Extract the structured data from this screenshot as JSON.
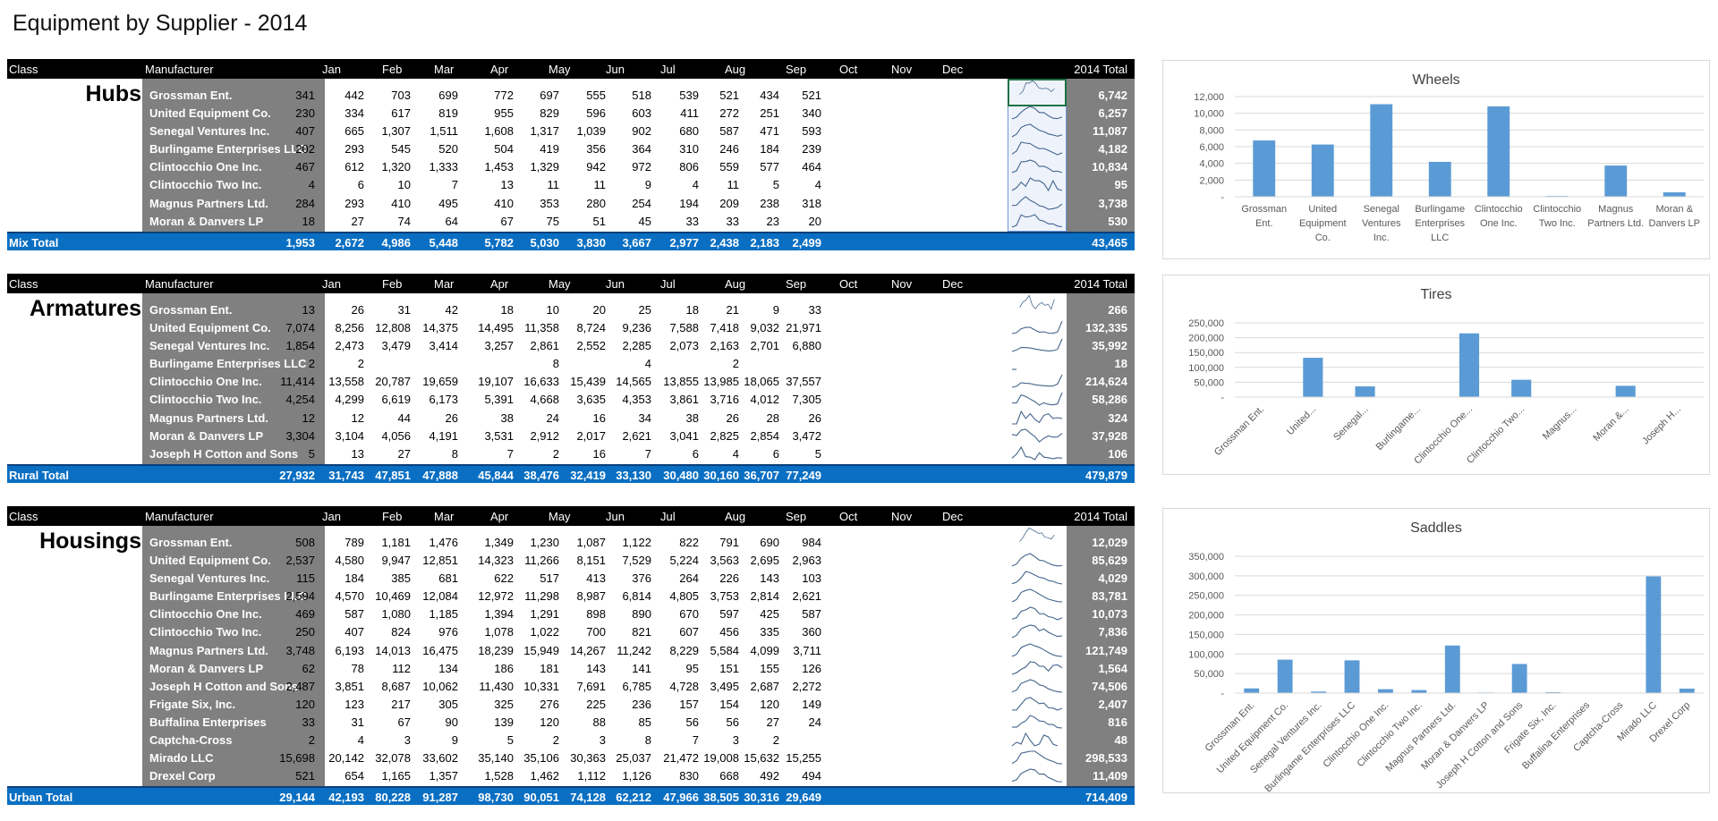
{
  "page": {
    "title": "Equipment by Supplier - 2014"
  },
  "table_headers": {
    "class": "Class",
    "manufacturer": "Manufacturer",
    "months": [
      "Jan",
      "Feb",
      "Mar",
      "Apr",
      "May",
      "Jun",
      "Jul",
      "Aug",
      "Sep",
      "Oct",
      "Nov",
      "Dec"
    ],
    "total": "2014 Total"
  },
  "sections": [
    {
      "class_name": "Hubs",
      "total_label": "Mix Total",
      "rows": [
        {
          "manufacturer": "Grossman Ent.",
          "values": [
            "341",
            "442",
            "703",
            "699",
            "772",
            "697",
            "555",
            "518",
            "539",
            "521",
            "434",
            "521"
          ],
          "total": "6,742"
        },
        {
          "manufacturer": "United Equipment Co.",
          "values": [
            "230",
            "334",
            "617",
            "819",
            "955",
            "829",
            "596",
            "603",
            "411",
            "272",
            "251",
            "340"
          ],
          "total": "6,257"
        },
        {
          "manufacturer": "Senegal Ventures Inc.",
          "values": [
            "407",
            "665",
            "1,307",
            "1,511",
            "1,608",
            "1,317",
            "1,039",
            "902",
            "680",
            "587",
            "471",
            "593"
          ],
          "total": "11,087"
        },
        {
          "manufacturer": "Burlingame Enterprises LLC",
          "values": [
            "202",
            "293",
            "545",
            "520",
            "504",
            "419",
            "356",
            "364",
            "310",
            "246",
            "184",
            "239"
          ],
          "total": "4,182"
        },
        {
          "manufacturer": "Clintocchio One Inc.",
          "values": [
            "467",
            "612",
            "1,320",
            "1,333",
            "1,453",
            "1,329",
            "942",
            "972",
            "806",
            "559",
            "577",
            "464"
          ],
          "total": "10,834"
        },
        {
          "manufacturer": "Clintocchio Two Inc.",
          "values": [
            "4",
            "6",
            "10",
            "7",
            "13",
            "11",
            "11",
            "9",
            "4",
            "11",
            "5",
            "4"
          ],
          "total": "95"
        },
        {
          "manufacturer": "Magnus Partners Ltd.",
          "values": [
            "284",
            "293",
            "410",
            "495",
            "410",
            "353",
            "280",
            "254",
            "194",
            "209",
            "238",
            "318"
          ],
          "total": "3,738"
        },
        {
          "manufacturer": "Moran & Danvers LP",
          "values": [
            "18",
            "27",
            "74",
            "64",
            "67",
            "75",
            "51",
            "45",
            "33",
            "33",
            "23",
            "20"
          ],
          "total": "530"
        }
      ],
      "totals": [
        "1,953",
        "2,672",
        "4,986",
        "5,448",
        "5,782",
        "5,030",
        "3,830",
        "3,667",
        "2,977",
        "2,438",
        "2,183",
        "2,499"
      ],
      "grand_total": "43,465"
    },
    {
      "class_name": "Armatures",
      "total_label": "Rural Total",
      "rows": [
        {
          "manufacturer": "Grossman Ent.",
          "values": [
            "13",
            "26",
            "31",
            "42",
            "18",
            "10",
            "20",
            "25",
            "18",
            "21",
            "9",
            "33"
          ],
          "total": "266"
        },
        {
          "manufacturer": "United Equipment Co.",
          "values": [
            "7,074",
            "8,256",
            "12,808",
            "14,375",
            "14,495",
            "11,358",
            "8,724",
            "9,236",
            "7,588",
            "7,418",
            "9,032",
            "21,971"
          ],
          "total": "132,335"
        },
        {
          "manufacturer": "Senegal Ventures Inc.",
          "values": [
            "1,854",
            "2,473",
            "3,479",
            "3,414",
            "3,257",
            "2,861",
            "2,552",
            "2,285",
            "2,073",
            "2,163",
            "2,701",
            "6,880"
          ],
          "total": "35,992"
        },
        {
          "manufacturer": "Burlingame Enterprises LLC",
          "values": [
            "2",
            "2",
            "",
            "",
            "",
            "8",
            "",
            "4",
            "",
            "2",
            "",
            ""
          ],
          "total": "18"
        },
        {
          "manufacturer": "Clintocchio One Inc.",
          "values": [
            "11,414",
            "13,558",
            "20,787",
            "19,659",
            "19,107",
            "16,633",
            "15,439",
            "14,565",
            "13,855",
            "13,985",
            "18,065",
            "37,557"
          ],
          "total": "214,624"
        },
        {
          "manufacturer": "Clintocchio Two Inc.",
          "values": [
            "4,254",
            "4,299",
            "6,619",
            "6,173",
            "5,391",
            "4,668",
            "3,635",
            "4,353",
            "3,861",
            "3,716",
            "4,012",
            "7,305"
          ],
          "total": "58,286"
        },
        {
          "manufacturer": "Magnus Partners Ltd.",
          "values": [
            "12",
            "12",
            "44",
            "26",
            "38",
            "24",
            "16",
            "34",
            "38",
            "26",
            "28",
            "26"
          ],
          "total": "324"
        },
        {
          "manufacturer": "Moran & Danvers LP",
          "values": [
            "3,304",
            "3,104",
            "4,056",
            "4,191",
            "3,531",
            "2,912",
            "2,017",
            "2,621",
            "3,041",
            "2,825",
            "2,854",
            "3,472"
          ],
          "total": "37,928"
        },
        {
          "manufacturer": "Joseph H Cotton and Sons",
          "values": [
            "5",
            "13",
            "27",
            "8",
            "7",
            "2",
            "16",
            "7",
            "6",
            "4",
            "6",
            "5"
          ],
          "total": "106"
        }
      ],
      "totals": [
        "27,932",
        "31,743",
        "47,851",
        "47,888",
        "45,844",
        "38,476",
        "32,419",
        "33,130",
        "30,480",
        "30,160",
        "36,707",
        "77,249"
      ],
      "grand_total": "479,879"
    },
    {
      "class_name": "Housings",
      "total_label": "Urban Total",
      "rows": [
        {
          "manufacturer": "Grossman Ent.",
          "values": [
            "508",
            "789",
            "1,181",
            "1,476",
            "1,349",
            "1,230",
            "1,087",
            "1,122",
            "822",
            "791",
            "690",
            "984"
          ],
          "total": "12,029"
        },
        {
          "manufacturer": "United Equipment Co.",
          "values": [
            "2,537",
            "4,580",
            "9,947",
            "12,851",
            "14,323",
            "11,266",
            "8,151",
            "7,529",
            "5,224",
            "3,563",
            "2,695",
            "2,963"
          ],
          "total": "85,629"
        },
        {
          "manufacturer": "Senegal Ventures Inc.",
          "values": [
            "115",
            "184",
            "385",
            "681",
            "622",
            "517",
            "413",
            "376",
            "264",
            "226",
            "143",
            "103"
          ],
          "total": "4,029"
        },
        {
          "manufacturer": "Burlingame Enterprises LLC",
          "values": [
            "2,594",
            "4,570",
            "10,469",
            "12,084",
            "12,972",
            "11,298",
            "8,987",
            "6,814",
            "4,805",
            "3,753",
            "2,814",
            "2,621"
          ],
          "total": "83,781"
        },
        {
          "manufacturer": "Clintocchio One Inc.",
          "values": [
            "469",
            "587",
            "1,080",
            "1,185",
            "1,394",
            "1,291",
            "898",
            "890",
            "670",
            "597",
            "425",
            "587"
          ],
          "total": "10,073"
        },
        {
          "manufacturer": "Clintocchio Two Inc.",
          "values": [
            "250",
            "407",
            "824",
            "976",
            "1,078",
            "1,022",
            "700",
            "821",
            "607",
            "456",
            "335",
            "360"
          ],
          "total": "7,836"
        },
        {
          "manufacturer": "Magnus Partners Ltd.",
          "values": [
            "3,748",
            "6,193",
            "14,013",
            "16,475",
            "18,239",
            "15,949",
            "14,267",
            "11,242",
            "8,229",
            "5,584",
            "4,099",
            "3,711"
          ],
          "total": "121,749"
        },
        {
          "manufacturer": "Moran & Danvers LP",
          "values": [
            "62",
            "78",
            "112",
            "134",
            "186",
            "181",
            "143",
            "141",
            "95",
            "151",
            "155",
            "126"
          ],
          "total": "1,564"
        },
        {
          "manufacturer": "Joseph H Cotton and Sons",
          "values": [
            "2,487",
            "3,851",
            "8,687",
            "10,062",
            "11,430",
            "10,331",
            "7,691",
            "6,785",
            "4,728",
            "3,495",
            "2,687",
            "2,272"
          ],
          "total": "74,506"
        },
        {
          "manufacturer": "Frigate Six, Inc.",
          "values": [
            "120",
            "123",
            "217",
            "305",
            "325",
            "276",
            "225",
            "236",
            "157",
            "154",
            "120",
            "149"
          ],
          "total": "2,407"
        },
        {
          "manufacturer": "Buffalina Enterprises",
          "values": [
            "33",
            "31",
            "67",
            "90",
            "139",
            "120",
            "88",
            "85",
            "56",
            "56",
            "27",
            "24"
          ],
          "total": "816"
        },
        {
          "manufacturer": "Captcha-Cross",
          "values": [
            "2",
            "4",
            "3",
            "9",
            "5",
            "2",
            "3",
            "8",
            "7",
            "3",
            "2",
            ""
          ],
          "total": "48"
        },
        {
          "manufacturer": "Mirado LLC",
          "values": [
            "15,698",
            "20,142",
            "32,078",
            "33,602",
            "35,140",
            "35,106",
            "30,363",
            "25,037",
            "21,472",
            "19,008",
            "15,632",
            "15,255"
          ],
          "total": "298,533"
        },
        {
          "manufacturer": "Drexel Corp",
          "values": [
            "521",
            "654",
            "1,165",
            "1,357",
            "1,528",
            "1,462",
            "1,112",
            "1,126",
            "830",
            "668",
            "492",
            "494"
          ],
          "total": "11,409"
        }
      ],
      "totals": [
        "29,144",
        "42,193",
        "80,228",
        "91,287",
        "98,730",
        "90,051",
        "74,128",
        "62,212",
        "47,966",
        "38,505",
        "30,316",
        "29,649"
      ],
      "grand_total": "714,409"
    }
  ],
  "colors": {
    "header_bg": "#000000",
    "gray_col": "#808080",
    "total_bar": "#0a6fc2",
    "bar": "#5b9bd5",
    "sparkline": "#44648c",
    "selection": "#1e7145"
  },
  "chart_data": [
    {
      "type": "bar",
      "title": "Wheels",
      "categories": [
        "Grossman Ent.",
        "United Equipment Co.",
        "Senegal Ventures Inc.",
        "Burlingame Enterprises LLC",
        "Clintocchio One Inc.",
        "Clintocchio Two Inc.",
        "Magnus Partners Ltd.",
        "Moran & Danvers LP"
      ],
      "category_display": [
        [
          "Grossman",
          "Ent."
        ],
        [
          "United",
          "Equipment",
          "Co."
        ],
        [
          "Senegal",
          "Ventures",
          "Inc."
        ],
        [
          "Burlingame",
          "Enterprises",
          "LLC"
        ],
        [
          "Clintocchio",
          "One Inc."
        ],
        [
          "Clintocchio",
          "Two Inc."
        ],
        [
          "Magnus",
          "Partners Ltd."
        ],
        [
          "Moran &",
          "Danvers LP"
        ]
      ],
      "values": [
        6742,
        6257,
        11087,
        4182,
        10834,
        95,
        3738,
        530
      ],
      "ylim": [
        0,
        12000
      ],
      "yticks": [
        0,
        2000,
        4000,
        6000,
        8000,
        10000,
        12000
      ],
      "ytick_labels": [
        "-",
        "2,000",
        "4,000",
        "6,000",
        "8,000",
        "10,000",
        "12,000"
      ],
      "xlabel": "",
      "ylabel": "",
      "grid": true,
      "legend": "none",
      "label_rotation": 0
    },
    {
      "type": "bar",
      "title": "Tires",
      "categories": [
        "Grossman Ent.",
        "United Equipment Co.",
        "Senegal Ventures Inc.",
        "Burlingame Enterprises LLC",
        "Clintocchio One Inc.",
        "Clintocchio Two Inc.",
        "Magnus Partners Ltd.",
        "Moran & Danvers LP",
        "Joseph H Cotton and Sons"
      ],
      "category_display": [
        "Grossman Ent.",
        "United...",
        "Senegal...",
        "Burlingame...",
        "Clintocchio One...",
        "Clintocchio Two...",
        "Magnus...",
        "Moran &...",
        "Joseph H..."
      ],
      "values": [
        266,
        132335,
        35992,
        18,
        214624,
        58286,
        324,
        37928,
        106
      ],
      "ylim": [
        0,
        250000
      ],
      "yticks": [
        0,
        50000,
        100000,
        150000,
        200000,
        250000
      ],
      "ytick_labels": [
        "-",
        "50,000",
        "100,000",
        "150,000",
        "200,000",
        "250,000"
      ],
      "xlabel": "",
      "ylabel": "",
      "grid": true,
      "legend": "none",
      "label_rotation": -45
    },
    {
      "type": "bar",
      "title": "Saddles",
      "categories": [
        "Grossman Ent.",
        "United Equipment Co.",
        "Senegal Ventures Inc.",
        "Burlingame Enterprises LLC",
        "Clintocchio One Inc.",
        "Clintocchio Two Inc.",
        "Magnus Partners Ltd.",
        "Moran & Danvers LP",
        "Joseph H Cotton and Sons",
        "Frigate Six, Inc.",
        "Buffalina Enterprises",
        "Captcha-Cross",
        "Mirado LLC",
        "Drexel Corp"
      ],
      "category_display": [
        "Grossman Ent.",
        "United Equipment Co.",
        "Senegal Ventures Inc.",
        "Burlingame Enterprises LLC",
        "Clintocchio One Inc.",
        "Clintocchio Two Inc.",
        "Magnus Partners Ltd.",
        "Moran & Danvers LP",
        "Joseph H Cotton and Sons",
        "Frigate Six, Inc.",
        "Buffalina Enterprises",
        "Captcha-Cross",
        "Mirado LLC",
        "Drexel Corp"
      ],
      "values": [
        12029,
        85629,
        4029,
        83781,
        10073,
        7836,
        121749,
        1564,
        74506,
        2407,
        816,
        48,
        298533,
        11409
      ],
      "ylim": [
        0,
        350000
      ],
      "yticks": [
        0,
        50000,
        100000,
        150000,
        200000,
        250000,
        300000,
        350000
      ],
      "ytick_labels": [
        "-",
        "50,000",
        "100,000",
        "150,000",
        "200,000",
        "250,000",
        "300,000",
        "350,000"
      ],
      "xlabel": "",
      "ylabel": "",
      "grid": true,
      "legend": "none",
      "label_rotation": -45
    }
  ]
}
